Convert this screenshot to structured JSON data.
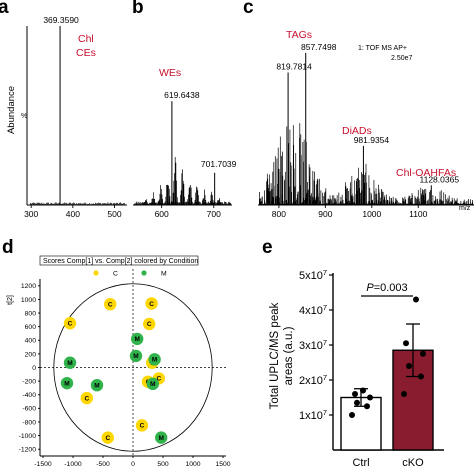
{
  "panels": {
    "a": "a",
    "b": "b",
    "c": "c",
    "d": "d",
    "e": "e"
  },
  "colors": {
    "class_label": "#c8102e",
    "pca_group_C": "#ffd700",
    "pca_group_M": "#2fb34a",
    "bar_ctrl": "#ffffff",
    "bar_cko": "#8a1c2f"
  },
  "spectrum_ylabel": "Abundance",
  "spectrum_c_info": {
    "line1": "1: TOF MS AP+",
    "line2": "2.50e7"
  },
  "chart_data": [
    {
      "type": "bar",
      "subtype": "mass-spectrum",
      "ylabel": "Abundance",
      "x_ticks": [
        300,
        400,
        500
      ],
      "xlim": [
        290,
        530
      ],
      "ylim": [
        0,
        100
      ],
      "peaks": [
        {
          "mz": 369.359,
          "abundance": 100,
          "label": "369.3590"
        }
      ],
      "annotations": [
        {
          "text_lines": [
            "Chl",
            "CEs"
          ]
        }
      ],
      "y_tick_text": "%"
    },
    {
      "type": "bar",
      "subtype": "mass-spectrum",
      "x_ticks": [
        600,
        700
      ],
      "xlim": [
        545,
        735
      ],
      "ylim": [
        0,
        100
      ],
      "peaks": [
        {
          "mz": 619.6438,
          "abundance": 58,
          "label": "619.6438"
        },
        {
          "mz": 701.7039,
          "abundance": 18,
          "label": "701.7039"
        }
      ],
      "annotations": [
        {
          "text_lines": [
            "WEs"
          ]
        }
      ]
    },
    {
      "type": "bar",
      "subtype": "mass-spectrum",
      "x_ticks": [
        800,
        900,
        1000,
        1100
      ],
      "x_unit": "m/z",
      "xlim": [
        755,
        1220
      ],
      "ylim": [
        0,
        100
      ],
      "peaks": [
        {
          "mz": 857.7498,
          "abundance": 85,
          "label": "857.7498"
        },
        {
          "mz": 819.7814,
          "abundance": 74,
          "label": "819.7814"
        },
        {
          "mz": 981.9354,
          "abundance": 33,
          "label": "981.9354"
        },
        {
          "mz": 1128.0365,
          "abundance": 11,
          "label": "1128.0365"
        }
      ],
      "annotations": [
        {
          "text_lines": [
            "TAGs"
          ]
        },
        {
          "text_lines": [
            "DiADs"
          ]
        },
        {
          "text_lines": [
            "Chl-OAHFAs"
          ]
        }
      ]
    },
    {
      "type": "scatter",
      "subtitle": "Scores Comp[1] vs. Comp[2] colored by Condition",
      "ylabel": "t[2]",
      "xlim": [
        -1550,
        1550
      ],
      "ylim": [
        -1300,
        1300
      ],
      "x_ticks": [
        -1500,
        -1000,
        -500,
        0,
        500,
        1000,
        1500
      ],
      "y_ticks": [
        1200,
        1000,
        800,
        600,
        400,
        200,
        0,
        -200,
        -400,
        -600,
        -800,
        -1000,
        -1200
      ],
      "ellipse": {
        "rx": 1320,
        "ry": 1230
      },
      "legend": [
        {
          "label": "C",
          "group": "C"
        },
        {
          "label": "M",
          "group": "M"
        }
      ],
      "points": [
        {
          "x": -1050,
          "y": 650,
          "label": "C",
          "group": "C"
        },
        {
          "x": -380,
          "y": 930,
          "label": "C",
          "group": "C"
        },
        {
          "x": -770,
          "y": -450,
          "label": "C",
          "group": "C"
        },
        {
          "x": -420,
          "y": -1030,
          "label": "C",
          "group": "C"
        },
        {
          "x": 150,
          "y": -850,
          "label": "C",
          "group": "C"
        },
        {
          "x": 310,
          "y": 940,
          "label": "C",
          "group": "C"
        },
        {
          "x": 270,
          "y": 640,
          "label": "C",
          "group": "C"
        },
        {
          "x": 250,
          "y": -210,
          "label": "C",
          "group": "C"
        },
        {
          "x": 430,
          "y": -160,
          "label": "C",
          "group": "C"
        },
        {
          "x": 320,
          "y": 70,
          "label": "C",
          "group": "C"
        },
        {
          "x": -1050,
          "y": 70,
          "label": "M",
          "group": "M"
        },
        {
          "x": -1100,
          "y": -230,
          "label": "M",
          "group": "M"
        },
        {
          "x": -600,
          "y": -260,
          "label": "M",
          "group": "M"
        },
        {
          "x": 70,
          "y": 420,
          "label": "M",
          "group": "M"
        },
        {
          "x": 50,
          "y": 170,
          "label": "M",
          "group": "M"
        },
        {
          "x": 360,
          "y": 120,
          "label": "M",
          "group": "M"
        },
        {
          "x": 330,
          "y": -240,
          "label": "M",
          "group": "M"
        },
        {
          "x": 470,
          "y": -1030,
          "label": "M",
          "group": "M"
        }
      ]
    },
    {
      "type": "bar",
      "ylabel_lines": [
        "Total UPLC/MS peak",
        "areas (a.u.)"
      ],
      "categories": [
        "Ctrl",
        "cKO"
      ],
      "ylim": [
        0,
        5
      ],
      "y_ticks": [
        1,
        2,
        3,
        4,
        5
      ],
      "y_tick_base": "10",
      "y_tick_exponent": "7",
      "values": [
        1.5,
        2.85
      ],
      "errors": [
        0.25,
        0.75
      ],
      "points": [
        [
          1.0,
          1.25,
          1.35,
          1.5,
          1.6,
          1.7
        ],
        [
          1.6,
          2.1,
          2.4,
          2.75,
          3.05,
          4.3
        ]
      ],
      "annotation": {
        "prefix": "P",
        "text": "=0.003"
      }
    }
  ]
}
